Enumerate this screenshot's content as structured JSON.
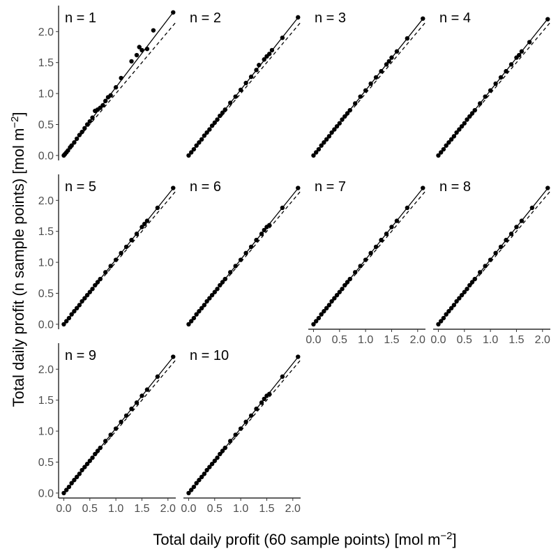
{
  "chart_data": {
    "type": "scatter",
    "layout": "faceted 3x4 grid, 10 panels (n = 1 … n = 10)",
    "xlabel": "Total daily profit (60 sample points) [mol m",
    "ylabel": "Total daily profit (n sample points) [mol m",
    "unit_exponent": "−2",
    "unit_close": "]",
    "xlim": [
      -0.1,
      2.15
    ],
    "ylim": [
      -0.08,
      2.42
    ],
    "x_ticks": [
      0.0,
      0.5,
      1.0,
      1.5,
      2.0
    ],
    "x_tick_labels": [
      "0.0",
      "0.5",
      "1.0",
      "1.5",
      "2.0"
    ],
    "y_ticks": [
      0.0,
      0.5,
      1.0,
      1.5,
      2.0
    ],
    "y_tick_labels": [
      "0.0",
      "0.5",
      "1.0",
      "1.5",
      "2.0"
    ],
    "reference_line": {
      "style": "dashed",
      "description": "1:1 line",
      "slope": 1,
      "intercept": 0
    },
    "grid": false,
    "panels": [
      {
        "label": "n = 1",
        "fit_line": {
          "style": "solid",
          "slope": 1.1,
          "intercept": 0.0
        },
        "points": [
          [
            0.0,
            0.0
          ],
          [
            0.02,
            0.02
          ],
          [
            0.05,
            0.05
          ],
          [
            0.08,
            0.08
          ],
          [
            0.12,
            0.13
          ],
          [
            0.15,
            0.16
          ],
          [
            0.2,
            0.21
          ],
          [
            0.25,
            0.27
          ],
          [
            0.3,
            0.33
          ],
          [
            0.35,
            0.38
          ],
          [
            0.4,
            0.44
          ],
          [
            0.45,
            0.5
          ],
          [
            0.5,
            0.55
          ],
          [
            0.55,
            0.61
          ],
          [
            0.6,
            0.72
          ],
          [
            0.65,
            0.74
          ],
          [
            0.7,
            0.77
          ],
          [
            0.75,
            0.81
          ],
          [
            0.8,
            0.88
          ],
          [
            0.85,
            0.94
          ],
          [
            0.9,
            0.97
          ],
          [
            1.0,
            1.1
          ],
          [
            1.1,
            1.25
          ],
          [
            1.3,
            1.52
          ],
          [
            1.4,
            1.62
          ],
          [
            1.45,
            1.75
          ],
          [
            1.5,
            1.7
          ],
          [
            1.6,
            1.72
          ],
          [
            1.72,
            2.02
          ],
          [
            2.1,
            2.31
          ]
        ]
      },
      {
        "label": "n = 2",
        "fit_line": {
          "style": "solid",
          "slope": 1.06,
          "intercept": 0.0
        },
        "points": [
          [
            0.0,
            0.0
          ],
          [
            0.05,
            0.05
          ],
          [
            0.1,
            0.1
          ],
          [
            0.15,
            0.16
          ],
          [
            0.2,
            0.21
          ],
          [
            0.25,
            0.26
          ],
          [
            0.3,
            0.32
          ],
          [
            0.35,
            0.37
          ],
          [
            0.4,
            0.42
          ],
          [
            0.45,
            0.48
          ],
          [
            0.5,
            0.53
          ],
          [
            0.55,
            0.58
          ],
          [
            0.6,
            0.64
          ],
          [
            0.65,
            0.69
          ],
          [
            0.7,
            0.74
          ],
          [
            0.8,
            0.85
          ],
          [
            0.9,
            0.95
          ],
          [
            1.0,
            1.06
          ],
          [
            1.1,
            1.17
          ],
          [
            1.2,
            1.27
          ],
          [
            1.3,
            1.38
          ],
          [
            1.35,
            1.46
          ],
          [
            1.45,
            1.55
          ],
          [
            1.5,
            1.6
          ],
          [
            1.55,
            1.64
          ],
          [
            1.6,
            1.7
          ],
          [
            1.8,
            1.9
          ],
          [
            2.1,
            2.23
          ]
        ]
      },
      {
        "label": "n = 3",
        "fit_line": {
          "style": "solid",
          "slope": 1.05,
          "intercept": 0.0
        },
        "points": [
          [
            0.0,
            0.0
          ],
          [
            0.05,
            0.05
          ],
          [
            0.1,
            0.1
          ],
          [
            0.15,
            0.16
          ],
          [
            0.2,
            0.21
          ],
          [
            0.25,
            0.26
          ],
          [
            0.3,
            0.31
          ],
          [
            0.35,
            0.37
          ],
          [
            0.4,
            0.42
          ],
          [
            0.45,
            0.47
          ],
          [
            0.5,
            0.52
          ],
          [
            0.55,
            0.58
          ],
          [
            0.6,
            0.63
          ],
          [
            0.65,
            0.68
          ],
          [
            0.7,
            0.73
          ],
          [
            0.8,
            0.84
          ],
          [
            0.9,
            0.95
          ],
          [
            1.0,
            1.05
          ],
          [
            1.1,
            1.16
          ],
          [
            1.2,
            1.26
          ],
          [
            1.3,
            1.36
          ],
          [
            1.4,
            1.47
          ],
          [
            1.45,
            1.52
          ],
          [
            1.5,
            1.58
          ],
          [
            1.6,
            1.68
          ],
          [
            1.8,
            1.89
          ],
          [
            2.1,
            2.21
          ]
        ]
      },
      {
        "label": "n = 4",
        "fit_line": {
          "style": "solid",
          "slope": 1.05,
          "intercept": 0.0
        },
        "points": [
          [
            0.0,
            0.0
          ],
          [
            0.05,
            0.05
          ],
          [
            0.1,
            0.1
          ],
          [
            0.15,
            0.16
          ],
          [
            0.2,
            0.21
          ],
          [
            0.25,
            0.26
          ],
          [
            0.3,
            0.31
          ],
          [
            0.35,
            0.37
          ],
          [
            0.4,
            0.42
          ],
          [
            0.45,
            0.47
          ],
          [
            0.5,
            0.52
          ],
          [
            0.55,
            0.58
          ],
          [
            0.6,
            0.63
          ],
          [
            0.65,
            0.68
          ],
          [
            0.7,
            0.73
          ],
          [
            0.8,
            0.84
          ],
          [
            0.9,
            0.95
          ],
          [
            1.0,
            1.05
          ],
          [
            1.1,
            1.16
          ],
          [
            1.2,
            1.26
          ],
          [
            1.3,
            1.36
          ],
          [
            1.4,
            1.47
          ],
          [
            1.5,
            1.58
          ],
          [
            1.55,
            1.62
          ],
          [
            1.6,
            1.68
          ],
          [
            1.75,
            1.83
          ],
          [
            2.1,
            2.2
          ]
        ]
      },
      {
        "label": "n = 5",
        "fit_line": {
          "style": "solid",
          "slope": 1.045,
          "intercept": 0.0
        },
        "points": [
          [
            0.0,
            0.0
          ],
          [
            0.05,
            0.05
          ],
          [
            0.1,
            0.1
          ],
          [
            0.15,
            0.16
          ],
          [
            0.2,
            0.21
          ],
          [
            0.25,
            0.26
          ],
          [
            0.3,
            0.31
          ],
          [
            0.35,
            0.37
          ],
          [
            0.4,
            0.42
          ],
          [
            0.45,
            0.47
          ],
          [
            0.5,
            0.52
          ],
          [
            0.55,
            0.57
          ],
          [
            0.6,
            0.63
          ],
          [
            0.65,
            0.68
          ],
          [
            0.7,
            0.73
          ],
          [
            0.8,
            0.84
          ],
          [
            0.9,
            0.94
          ],
          [
            1.0,
            1.04
          ],
          [
            1.1,
            1.15
          ],
          [
            1.2,
            1.25
          ],
          [
            1.3,
            1.36
          ],
          [
            1.4,
            1.46
          ],
          [
            1.5,
            1.57
          ],
          [
            1.55,
            1.62
          ],
          [
            1.6,
            1.67
          ],
          [
            1.8,
            1.88
          ],
          [
            2.1,
            2.2
          ]
        ]
      },
      {
        "label": "n = 6",
        "fit_line": {
          "style": "solid",
          "slope": 1.045,
          "intercept": 0.0
        },
        "points": [
          [
            0.0,
            0.0
          ],
          [
            0.05,
            0.05
          ],
          [
            0.1,
            0.1
          ],
          [
            0.15,
            0.16
          ],
          [
            0.2,
            0.21
          ],
          [
            0.25,
            0.26
          ],
          [
            0.3,
            0.31
          ],
          [
            0.35,
            0.37
          ],
          [
            0.4,
            0.42
          ],
          [
            0.45,
            0.47
          ],
          [
            0.5,
            0.52
          ],
          [
            0.55,
            0.57
          ],
          [
            0.6,
            0.63
          ],
          [
            0.65,
            0.68
          ],
          [
            0.7,
            0.73
          ],
          [
            0.8,
            0.84
          ],
          [
            0.9,
            0.94
          ],
          [
            1.0,
            1.04
          ],
          [
            1.1,
            1.15
          ],
          [
            1.2,
            1.25
          ],
          [
            1.3,
            1.36
          ],
          [
            1.4,
            1.46
          ],
          [
            1.45,
            1.52
          ],
          [
            1.5,
            1.57
          ],
          [
            1.55,
            1.6
          ],
          [
            1.8,
            1.88
          ],
          [
            2.1,
            2.2
          ]
        ]
      },
      {
        "label": "n = 7",
        "fit_line": {
          "style": "solid",
          "slope": 1.045,
          "intercept": 0.0
        },
        "points": [
          [
            0.0,
            0.0
          ],
          [
            0.05,
            0.05
          ],
          [
            0.1,
            0.1
          ],
          [
            0.15,
            0.16
          ],
          [
            0.2,
            0.21
          ],
          [
            0.25,
            0.26
          ],
          [
            0.3,
            0.31
          ],
          [
            0.35,
            0.37
          ],
          [
            0.4,
            0.42
          ],
          [
            0.45,
            0.47
          ],
          [
            0.5,
            0.52
          ],
          [
            0.55,
            0.57
          ],
          [
            0.6,
            0.63
          ],
          [
            0.65,
            0.68
          ],
          [
            0.7,
            0.73
          ],
          [
            0.8,
            0.84
          ],
          [
            0.9,
            0.94
          ],
          [
            1.0,
            1.04
          ],
          [
            1.1,
            1.15
          ],
          [
            1.2,
            1.25
          ],
          [
            1.3,
            1.36
          ],
          [
            1.4,
            1.46
          ],
          [
            1.5,
            1.57
          ],
          [
            1.6,
            1.67
          ],
          [
            1.8,
            1.88
          ],
          [
            2.1,
            2.2
          ]
        ]
      },
      {
        "label": "n = 8",
        "fit_line": {
          "style": "solid",
          "slope": 1.045,
          "intercept": 0.0
        },
        "points": [
          [
            0.0,
            0.0
          ],
          [
            0.05,
            0.05
          ],
          [
            0.1,
            0.1
          ],
          [
            0.15,
            0.16
          ],
          [
            0.2,
            0.21
          ],
          [
            0.25,
            0.26
          ],
          [
            0.3,
            0.31
          ],
          [
            0.35,
            0.37
          ],
          [
            0.4,
            0.42
          ],
          [
            0.45,
            0.47
          ],
          [
            0.5,
            0.52
          ],
          [
            0.55,
            0.57
          ],
          [
            0.6,
            0.63
          ],
          [
            0.65,
            0.68
          ],
          [
            0.7,
            0.73
          ],
          [
            0.8,
            0.84
          ],
          [
            0.9,
            0.94
          ],
          [
            1.0,
            1.04
          ],
          [
            1.1,
            1.15
          ],
          [
            1.2,
            1.25
          ],
          [
            1.3,
            1.36
          ],
          [
            1.4,
            1.46
          ],
          [
            1.5,
            1.57
          ],
          [
            1.6,
            1.67
          ],
          [
            1.8,
            1.88
          ],
          [
            2.1,
            2.2
          ]
        ]
      },
      {
        "label": "n = 9",
        "fit_line": {
          "style": "solid",
          "slope": 1.045,
          "intercept": 0.0
        },
        "points": [
          [
            0.0,
            0.0
          ],
          [
            0.05,
            0.05
          ],
          [
            0.1,
            0.1
          ],
          [
            0.15,
            0.16
          ],
          [
            0.2,
            0.21
          ],
          [
            0.25,
            0.26
          ],
          [
            0.3,
            0.31
          ],
          [
            0.35,
            0.37
          ],
          [
            0.4,
            0.42
          ],
          [
            0.45,
            0.47
          ],
          [
            0.5,
            0.52
          ],
          [
            0.55,
            0.57
          ],
          [
            0.6,
            0.63
          ],
          [
            0.65,
            0.68
          ],
          [
            0.7,
            0.73
          ],
          [
            0.8,
            0.84
          ],
          [
            0.9,
            0.94
          ],
          [
            1.0,
            1.04
          ],
          [
            1.1,
            1.15
          ],
          [
            1.2,
            1.25
          ],
          [
            1.3,
            1.36
          ],
          [
            1.4,
            1.46
          ],
          [
            1.5,
            1.57
          ],
          [
            1.6,
            1.67
          ],
          [
            1.8,
            1.88
          ],
          [
            2.1,
            2.2
          ]
        ]
      },
      {
        "label": "n = 10",
        "fit_line": {
          "style": "solid",
          "slope": 1.045,
          "intercept": 0.0
        },
        "points": [
          [
            0.0,
            0.0
          ],
          [
            0.05,
            0.05
          ],
          [
            0.1,
            0.1
          ],
          [
            0.15,
            0.16
          ],
          [
            0.2,
            0.21
          ],
          [
            0.25,
            0.26
          ],
          [
            0.3,
            0.31
          ],
          [
            0.35,
            0.37
          ],
          [
            0.4,
            0.42
          ],
          [
            0.45,
            0.47
          ],
          [
            0.5,
            0.52
          ],
          [
            0.55,
            0.57
          ],
          [
            0.6,
            0.63
          ],
          [
            0.65,
            0.68
          ],
          [
            0.7,
            0.73
          ],
          [
            0.8,
            0.84
          ],
          [
            0.9,
            0.94
          ],
          [
            1.0,
            1.04
          ],
          [
            1.1,
            1.15
          ],
          [
            1.2,
            1.25
          ],
          [
            1.3,
            1.36
          ],
          [
            1.4,
            1.46
          ],
          [
            1.45,
            1.52
          ],
          [
            1.5,
            1.57
          ],
          [
            1.55,
            1.6
          ],
          [
            1.8,
            1.88
          ],
          [
            2.1,
            2.2
          ]
        ]
      }
    ]
  }
}
